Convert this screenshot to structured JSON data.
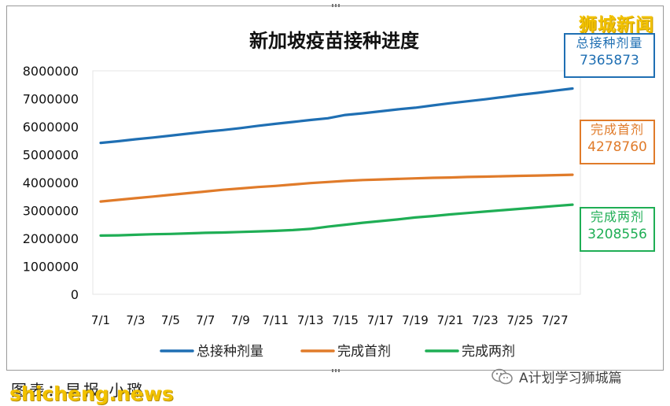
{
  "chart_data": {
    "type": "line",
    "title": "新加坡疫苗接种进度",
    "categories": [
      "7/1",
      "7/2",
      "7/3",
      "7/4",
      "7/5",
      "7/6",
      "7/7",
      "7/8",
      "7/9",
      "7/10",
      "7/11",
      "7/12",
      "7/13",
      "7/14",
      "7/15",
      "7/16",
      "7/17",
      "7/18",
      "7/19",
      "7/20",
      "7/21",
      "7/22",
      "7/23",
      "7/24",
      "7/25",
      "7/26",
      "7/27",
      "7/28"
    ],
    "x_tick_labels": [
      "7/1",
      "7/3",
      "7/5",
      "7/7",
      "7/9",
      "7/11",
      "7/13",
      "7/15",
      "7/17",
      "7/19",
      "7/21",
      "7/23",
      "7/25",
      "7/27"
    ],
    "y_tick_labels": [
      "0",
      "1000000",
      "2000000",
      "3000000",
      "4000000",
      "5000000",
      "6000000",
      "7000000",
      "8000000"
    ],
    "ylim": [
      0,
      8000000
    ],
    "grid": false,
    "legend_position": "bottom",
    "series": [
      {
        "name": "总接种剂量",
        "color": "#1f6fb3",
        "values": [
          5420000,
          5480000,
          5550000,
          5610000,
          5680000,
          5750000,
          5820000,
          5880000,
          5950000,
          6030000,
          6100000,
          6170000,
          6240000,
          6300000,
          6420000,
          6480000,
          6550000,
          6620000,
          6680000,
          6760000,
          6840000,
          6910000,
          6980000,
          7060000,
          7140000,
          7210000,
          7290000,
          7365873
        ]
      },
      {
        "name": "完成首剂",
        "color": "#e07b2a",
        "values": [
          3320000,
          3380000,
          3440000,
          3500000,
          3560000,
          3620000,
          3680000,
          3740000,
          3790000,
          3840000,
          3880000,
          3930000,
          3980000,
          4020000,
          4060000,
          4090000,
          4110000,
          4130000,
          4150000,
          4170000,
          4180000,
          4200000,
          4210000,
          4225000,
          4240000,
          4250000,
          4265000,
          4278760
        ]
      },
      {
        "name": "完成两剂",
        "color": "#1fae55",
        "values": [
          2100000,
          2110000,
          2130000,
          2150000,
          2160000,
          2180000,
          2200000,
          2210000,
          2230000,
          2250000,
          2270000,
          2300000,
          2340000,
          2420000,
          2490000,
          2560000,
          2620000,
          2680000,
          2750000,
          2800000,
          2860000,
          2910000,
          2960000,
          3010000,
          3060000,
          3110000,
          3160000,
          3208556
        ]
      }
    ]
  },
  "callouts": [
    {
      "label": "总接种剂量",
      "value": "7365873"
    },
    {
      "label": "完成首剂",
      "value": "4278760"
    },
    {
      "label": "完成两剂",
      "value": "3208556"
    }
  ],
  "watermarks": {
    "top": "狮城新闻",
    "bottom": "shicheng.news"
  },
  "caption": "图表：早报 小璐",
  "wechat": {
    "account": "A计划学习狮城篇",
    "icon": "wechat-icon"
  }
}
